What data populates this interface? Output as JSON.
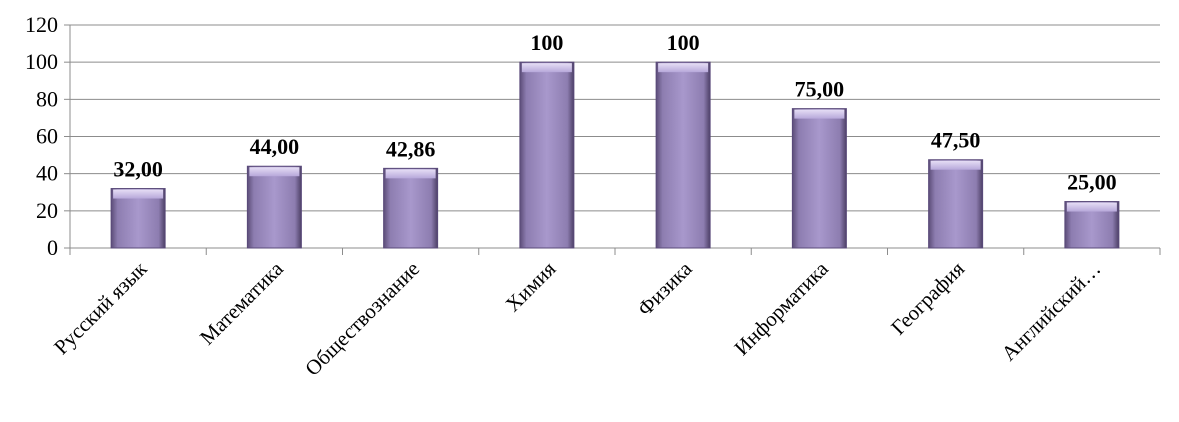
{
  "chart_data": {
    "type": "bar",
    "categories": [
      "Русский язык",
      "Математика",
      "Обществознание",
      "Химия",
      "Физика",
      "Информатика",
      "География",
      "Английский…"
    ],
    "values": [
      32,
      44,
      42.86,
      100,
      100,
      75,
      47.5,
      25
    ],
    "data_labels": [
      "32,00",
      "44,00",
      "42,86",
      "100",
      "100",
      "75,00",
      "47,50",
      "25,00"
    ],
    "yticks": [
      "0",
      "20",
      "40",
      "60",
      "80",
      "100",
      "120"
    ],
    "ylim": [
      0,
      120
    ],
    "grid": true,
    "legend": "none",
    "bar_color": "#a493c6",
    "bar_edge_color": "#5a4a7a"
  }
}
